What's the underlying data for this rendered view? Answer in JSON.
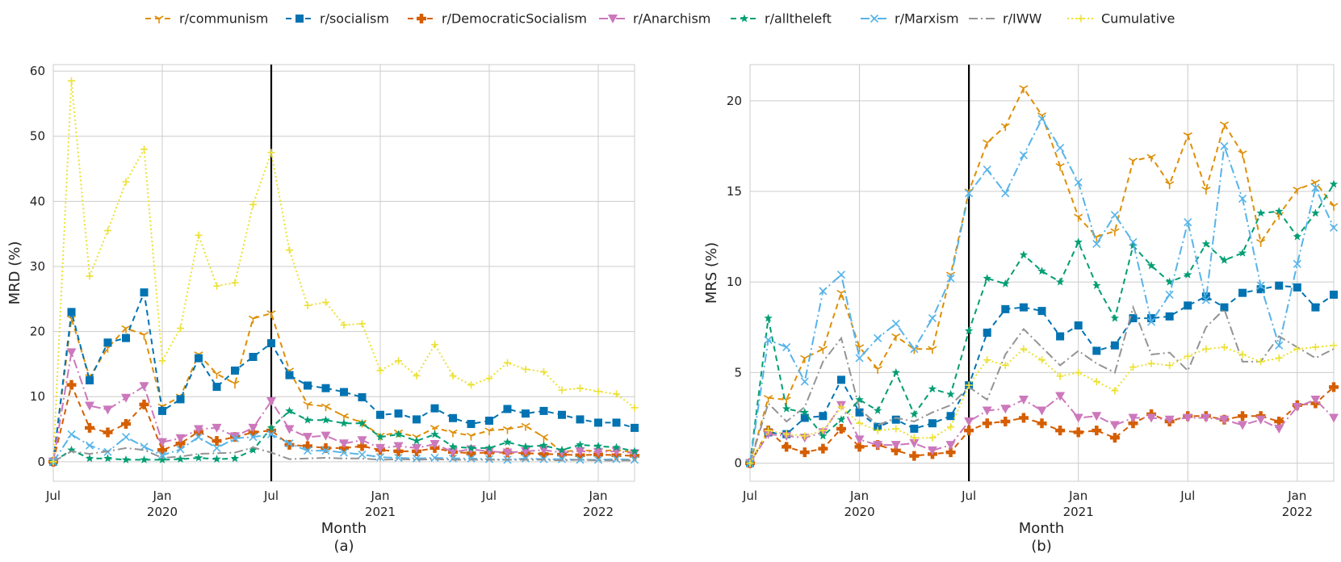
{
  "legend": [
    "r/communism",
    "r/socialism",
    "r/DemocraticSocialism",
    "r/Anarchism",
    "r/alltheleft",
    "r/Marxism",
    "r/IWW",
    "Cumulative"
  ],
  "series_styles": [
    {
      "name": "r/communism",
      "color": "#de8f05",
      "dash": "7,5",
      "marker": "tri-down"
    },
    {
      "name": "r/socialism",
      "color": "#0173b2",
      "dash": "7,5",
      "marker": "square"
    },
    {
      "name": "r/DemocraticSocialism",
      "color": "#d55e00",
      "dash": "7,5",
      "marker": "plus"
    },
    {
      "name": "r/Anarchism",
      "color": "#cc78bc",
      "dash": "11,4,2,4",
      "marker": "triangle-down"
    },
    {
      "name": "r/alltheleft",
      "color": "#029e73",
      "dash": "7,5",
      "marker": "star"
    },
    {
      "name": "r/Marxism",
      "color": "#56b4e9",
      "dash": "11,4,2,4",
      "marker": "x"
    },
    {
      "name": "r/IWW",
      "color": "#949494",
      "dash": "11,4,2,4",
      "marker": "none"
    },
    {
      "name": "Cumulative",
      "color": "#ece133",
      "dash": "2,3",
      "marker": "thin-plus"
    }
  ],
  "event_line": {
    "x": 12,
    "color": "#000000"
  },
  "chart_data": [
    {
      "type": "line",
      "panel_label": "(a)",
      "xlabel": "Month",
      "ylabel": "MRD (%)",
      "xlim": [
        0,
        32
      ],
      "ylim": [
        -3,
        61
      ],
      "yticks": [
        0,
        10,
        20,
        30,
        40,
        50,
        60
      ],
      "xticks": [
        {
          "x": 0,
          "label": "Jul",
          "sub": ""
        },
        {
          "x": 6,
          "label": "Jan",
          "sub": "2020"
        },
        {
          "x": 12,
          "label": "Jul",
          "sub": ""
        },
        {
          "x": 18,
          "label": "Jan",
          "sub": "2021"
        },
        {
          "x": 24,
          "label": "Jul",
          "sub": ""
        },
        {
          "x": 30,
          "label": "Jan",
          "sub": "2022"
        }
      ],
      "x": [
        0,
        1,
        2,
        3,
        4,
        5,
        6,
        7,
        8,
        9,
        10,
        11,
        12,
        13,
        14,
        15,
        16,
        17,
        18,
        19,
        20,
        21,
        22,
        23,
        24,
        25,
        26,
        27,
        28,
        29,
        30,
        31,
        32
      ],
      "series": [
        {
          "name": "r/communism",
          "values": [
            0,
            22,
            13,
            17.5,
            20.5,
            19.5,
            8.5,
            10,
            16.5,
            13.5,
            12,
            22,
            22.8,
            14,
            8.8,
            8.5,
            7,
            6,
            4,
            4.5,
            3.8,
            5.2,
            4.5,
            4,
            4.8,
            5,
            5.5,
            3.8,
            1.5,
            1.8,
            1.6,
            1.8,
            1.4
          ]
        },
        {
          "name": "r/socialism",
          "values": [
            0,
            23,
            12.5,
            18.3,
            19,
            26,
            7.8,
            9.6,
            15.9,
            11.5,
            14,
            16.1,
            18.2,
            13.3,
            11.7,
            11.3,
            10.7,
            9.9,
            7.2,
            7.4,
            6.5,
            8.2,
            6.7,
            5.8,
            6.3,
            8.1,
            7.4,
            7.8,
            7.2,
            6.5,
            6,
            6,
            5.2
          ]
        },
        {
          "name": "r/DemocraticSocialism",
          "values": [
            0,
            11.8,
            5.2,
            4.5,
            5.8,
            8.8,
            1.8,
            2.8,
            4.6,
            3.2,
            3.8,
            4.5,
            4.8,
            2.6,
            2.4,
            2.1,
            2.1,
            2.4,
            1.8,
            1.6,
            1.6,
            2.1,
            1.5,
            1.3,
            1.4,
            1.4,
            1.3,
            1.2,
            1.1,
            1,
            1.1,
            1,
            0.9
          ]
        },
        {
          "name": "r/Anarchism",
          "values": [
            0,
            16.8,
            8.6,
            8,
            9.8,
            11.6,
            3,
            3.6,
            5,
            5.2,
            3.9,
            5.2,
            9.3,
            5,
            3.8,
            4,
            2.8,
            3.3,
            2.1,
            2.4,
            2.1,
            2.7,
            1.5,
            1.9,
            1.6,
            1.4,
            1.6,
            1.8,
            1.4,
            1.6,
            1.5,
            1.6,
            1.3
          ]
        },
        {
          "name": "r/alltheleft",
          "values": [
            0,
            1.8,
            0.5,
            0.5,
            0.3,
            0.3,
            0.3,
            0.4,
            0.6,
            0.4,
            0.5,
            1.8,
            5.2,
            7.8,
            6.4,
            6.4,
            5.9,
            5.9,
            3.8,
            4.2,
            3.2,
            4.2,
            2.3,
            2.1,
            2.1,
            3,
            2.3,
            2.5,
            1.8,
            2.6,
            2.4,
            2.2,
            1.6
          ]
        },
        {
          "name": "r/Marxism",
          "values": [
            0,
            4.2,
            2.5,
            1.5,
            3.8,
            2.3,
            1,
            1.9,
            3.8,
            2.1,
            3.6,
            3.8,
            4.2,
            2.8,
            1.7,
            1.7,
            1.4,
            1.1,
            0.7,
            0.6,
            0.5,
            0.6,
            0.5,
            0.5,
            0.4,
            0.3,
            0.5,
            0.4,
            0.4,
            0.3,
            0.3,
            0.4,
            0.3
          ]
        },
        {
          "name": "r/IWW",
          "values": [
            0,
            1.6,
            1.2,
            1.6,
            2.1,
            1.8,
            0.6,
            0.8,
            1.2,
            1.3,
            1.4,
            2.2,
            1.4,
            0.4,
            0.5,
            0.6,
            0.5,
            0.5,
            0.3,
            0.4,
            0.3,
            0.4,
            0.3,
            0.3,
            0.3,
            0.3,
            0.3,
            0.3,
            0.2,
            0.3,
            0.2,
            0.2,
            0.2
          ]
        },
        {
          "name": "Cumulative",
          "values": [
            0,
            58.5,
            28.5,
            35.5,
            43,
            48,
            15.5,
            20.5,
            34.8,
            27,
            27.5,
            39.5,
            47.5,
            32.5,
            24,
            24.5,
            21,
            21.2,
            14,
            15.5,
            13.2,
            18,
            13.2,
            11.8,
            12.8,
            15.2,
            14.2,
            13.8,
            11,
            11.3,
            10.8,
            10.4,
            8.3
          ]
        }
      ]
    },
    {
      "type": "line",
      "panel_label": "(b)",
      "xlabel": "Month",
      "ylabel": "MRS (%)",
      "xlim": [
        0,
        32
      ],
      "ylim": [
        -1,
        22
      ],
      "yticks": [
        0,
        5,
        10,
        15,
        20
      ],
      "xticks": [
        {
          "x": 0,
          "label": "Jul",
          "sub": ""
        },
        {
          "x": 6,
          "label": "Jan",
          "sub": "2020"
        },
        {
          "x": 12,
          "label": "Jul",
          "sub": ""
        },
        {
          "x": 18,
          "label": "Jan",
          "sub": "2021"
        },
        {
          "x": 24,
          "label": "Jul",
          "sub": ""
        },
        {
          "x": 30,
          "label": "Jan",
          "sub": "2022"
        }
      ],
      "x": [
        0,
        1,
        2,
        3,
        4,
        5,
        6,
        7,
        8,
        9,
        10,
        11,
        12,
        13,
        14,
        15,
        16,
        17,
        18,
        19,
        20,
        21,
        22,
        23,
        24,
        25,
        26,
        27,
        28,
        29,
        30,
        31,
        32
      ],
      "series": [
        {
          "name": "r/communism",
          "values": [
            0,
            3.6,
            3.5,
            5.8,
            6.3,
            9.4,
            6.4,
            5.2,
            7,
            6.3,
            6.3,
            10.4,
            15,
            17.7,
            18.6,
            20.7,
            19.2,
            16.4,
            13.6,
            12.5,
            12.8,
            16.7,
            16.9,
            15.4,
            18.1,
            15.1,
            18.7,
            17.1,
            12.2,
            13.7,
            15.1,
            15.5,
            14.2
          ]
        },
        {
          "name": "r/socialism",
          "values": [
            0,
            1.7,
            1.6,
            2.5,
            2.6,
            4.6,
            2.8,
            2,
            2.4,
            1.9,
            2.2,
            2.6,
            4.3,
            7.2,
            8.5,
            8.6,
            8.4,
            7,
            7.6,
            6.2,
            6.5,
            8,
            8,
            8.1,
            8.7,
            9.2,
            8.6,
            9.4,
            9.6,
            9.8,
            9.7,
            8.6,
            9.3
          ]
        },
        {
          "name": "r/DemocraticSocialism",
          "values": [
            0,
            1.8,
            0.9,
            0.6,
            0.8,
            1.9,
            0.9,
            1,
            0.7,
            0.4,
            0.5,
            0.6,
            1.8,
            2.2,
            2.3,
            2.5,
            2.2,
            1.8,
            1.7,
            1.8,
            1.4,
            2.2,
            2.7,
            2.3,
            2.6,
            2.6,
            2.4,
            2.6,
            2.6,
            2.3,
            3.2,
            3.3,
            4.2
          ]
        },
        {
          "name": "r/Anarchism",
          "values": [
            0,
            1.6,
            1.5,
            1.4,
            1.7,
            3.2,
            1.3,
            1,
            1,
            1.1,
            0.7,
            1,
            2.3,
            2.9,
            3,
            3.5,
            2.9,
            3.7,
            2.5,
            2.6,
            2.1,
            2.5,
            2.5,
            2.4,
            2.5,
            2.5,
            2.4,
            2.1,
            2.4,
            1.9,
            3.1,
            3.5,
            2.5
          ]
        },
        {
          "name": "r/alltheleft",
          "values": [
            0,
            8,
            3,
            2.8,
            1.5,
            2.4,
            3.5,
            2.9,
            5,
            2.7,
            4.1,
            3.8,
            7.3,
            10.2,
            9.9,
            11.5,
            10.6,
            10,
            12.2,
            9.8,
            8,
            12,
            10.9,
            10,
            10.4,
            12.1,
            11.2,
            11.6,
            13.8,
            13.9,
            12.5,
            13.8,
            15.4
          ]
        },
        {
          "name": "r/Marxism",
          "values": [
            0,
            6.8,
            6.4,
            4.5,
            9.5,
            10.4,
            5.8,
            6.9,
            7.7,
            6.3,
            8,
            10.2,
            14.9,
            16.2,
            14.9,
            17,
            19,
            17.4,
            15.5,
            12.1,
            13.7,
            12.2,
            7.8,
            9.3,
            13.3,
            9,
            17.5,
            14.6,
            9.8,
            6.5,
            11,
            15.2,
            13
          ]
        },
        {
          "name": "r/IWW",
          "values": [
            0,
            3.3,
            2.3,
            3.1,
            5.6,
            6.9,
            3,
            2.1,
            2.5,
            2.3,
            2.8,
            3.2,
            4.2,
            3.5,
            6,
            7.4,
            6.4,
            5.4,
            6.2,
            5.5,
            5,
            8.6,
            6,
            6.1,
            5.1,
            7.5,
            8.5,
            5.6,
            5.6,
            7,
            6.4,
            5.8,
            6.3
          ]
        },
        {
          "name": "Cumulative",
          "values": [
            0,
            1.8,
            1.6,
            1.5,
            1.8,
            3.1,
            2.2,
            1.8,
            1.9,
            1.4,
            1.4,
            2,
            4.3,
            5.7,
            5.4,
            6.3,
            5.7,
            4.8,
            5,
            4.5,
            4,
            5.3,
            5.5,
            5.4,
            5.9,
            6.3,
            6.4,
            6,
            5.6,
            5.8,
            6.3,
            6.4,
            6.5
          ]
        }
      ]
    }
  ]
}
